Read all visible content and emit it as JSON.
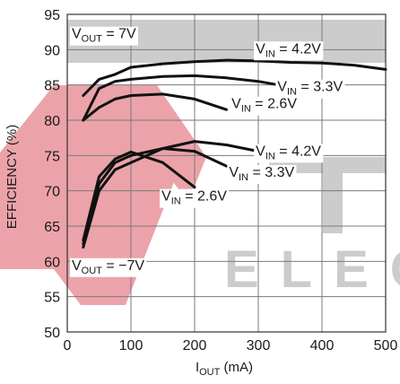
{
  "chart_data": {
    "type": "line",
    "xlabel": {
      "main": "I",
      "sub": "OUT",
      "unit": " (mA)"
    },
    "ylabel": "EFFICIENCY (%)",
    "xlim": [
      0,
      500
    ],
    "ylim": [
      50,
      95
    ],
    "xticks": [
      "0",
      "100",
      "200",
      "300",
      "400",
      "500"
    ],
    "yticks": [
      "50",
      "55",
      "60",
      "65",
      "70",
      "75",
      "80",
      "85",
      "90",
      "95"
    ],
    "grid": true,
    "series": [
      {
        "name": "VOUT = 7V, VIN = 4.2V",
        "color": "#111111",
        "x": [
          25,
          50,
          75,
          100,
          150,
          200,
          250,
          300,
          350,
          400,
          450,
          500
        ],
        "y": [
          83.5,
          85.8,
          86.5,
          87.5,
          88.0,
          88.3,
          88.5,
          88.4,
          88.2,
          88.1,
          87.8,
          87.2
        ]
      },
      {
        "name": "VOUT = 7V, VIN = 3.3V",
        "color": "#111111",
        "x": [
          25,
          50,
          75,
          100,
          150,
          200,
          250,
          300,
          350
        ],
        "y": [
          80.0,
          84.5,
          85.5,
          85.8,
          86.2,
          86.3,
          86.0,
          85.5,
          84.7
        ]
      },
      {
        "name": "VOUT = 7V, VIN = 2.6V",
        "color": "#111111",
        "x": [
          25,
          50,
          75,
          100,
          150,
          200,
          250
        ],
        "y": [
          80.0,
          81.8,
          83.0,
          83.5,
          83.7,
          83.0,
          81.5
        ]
      },
      {
        "name": "VOUT = -7V, VIN = 4.2V",
        "color": "#111111",
        "x": [
          25,
          50,
          75,
          100,
          150,
          200,
          250,
          300
        ],
        "y": [
          62.0,
          70.0,
          73.0,
          74.0,
          76.0,
          77.0,
          76.5,
          75.6
        ]
      },
      {
        "name": "VOUT = -7V, VIN = 3.3V",
        "color": "#111111",
        "x": [
          25,
          50,
          75,
          100,
          150,
          200,
          250
        ],
        "y": [
          62.5,
          71.0,
          74.0,
          75.0,
          76.0,
          75.6,
          73.5
        ]
      },
      {
        "name": "VOUT = -7V, VIN = 2.6V",
        "color": "#111111",
        "x": [
          25,
          50,
          75,
          100,
          150,
          200
        ],
        "y": [
          63.0,
          72.0,
          74.5,
          75.5,
          74.0,
          70.5
        ]
      }
    ],
    "annotations": [
      {
        "pre": "V",
        "sub": "OUT",
        "post": " = 7V",
        "x": 7,
        "y": 91.6
      },
      {
        "pre": "V",
        "sub": "IN",
        "post": " = 4.2V",
        "x": 296,
        "y": 89.5
      },
      {
        "pre": "V",
        "sub": "IN",
        "post": " = 3.3V",
        "x": 330,
        "y": 84.1
      },
      {
        "pre": "V",
        "sub": "IN",
        "post": " = 2.6V",
        "x": 258,
        "y": 81.7
      },
      {
        "pre": "V",
        "sub": "IN",
        "post": " = 4.2V",
        "x": 296,
        "y": 75.0
      },
      {
        "pre": "V",
        "sub": "IN",
        "post": " = 3.3V",
        "x": 254,
        "y": 72.0
      },
      {
        "pre": "V",
        "sub": "IN",
        "post": " = 2.6V",
        "x": 148,
        "y": 68.6
      },
      {
        "pre": "V",
        "sub": "OUT",
        "post": " = −7V",
        "x": 7,
        "y": 58.8
      }
    ]
  },
  "watermark": {
    "logo_color": "#d94a55",
    "letters_color": "#9a9a9a",
    "text": "ELEC"
  }
}
